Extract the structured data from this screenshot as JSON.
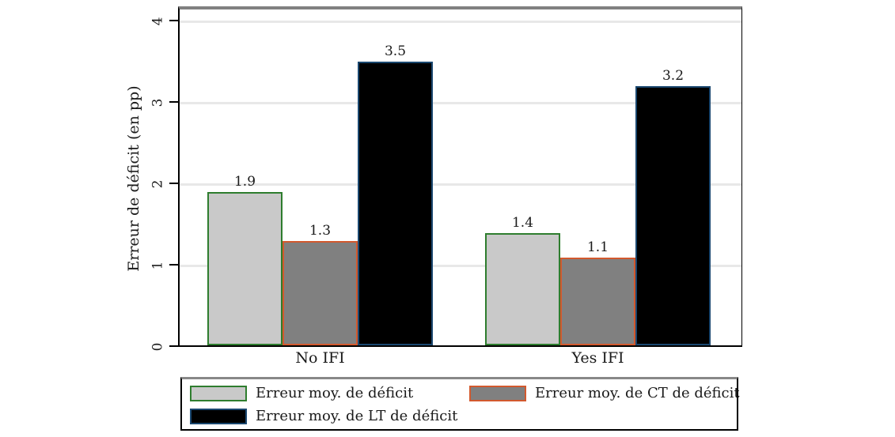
{
  "chart_data": {
    "type": "bar",
    "title": "",
    "xlabel": "",
    "ylabel": "Erreur de déficit (en pp)",
    "ylim": [
      0,
      4
    ],
    "yticks": [
      0,
      1,
      2,
      3,
      4
    ],
    "grid": "horizontal",
    "legend_position": "bottom-box",
    "categories": [
      "No IFI",
      "Yes IFI"
    ],
    "series": [
      {
        "name": "Erreur moy. de déficit",
        "fill": "#c9c9c9",
        "border": "#2e7d2e",
        "values": [
          1.9,
          1.4
        ]
      },
      {
        "name": "Erreur moy. de CT de déficit",
        "fill": "#808080",
        "border": "#d2592e",
        "values": [
          1.3,
          1.1
        ]
      },
      {
        "name": "Erreur moy. de LT de déficit",
        "fill": "#000000",
        "border": "#1a476f",
        "values": [
          3.5,
          3.2
        ]
      }
    ],
    "bar_value_labels": [
      [
        "1.9",
        "1.3",
        "3.5"
      ],
      [
        "1.4",
        "1.1",
        "3.2"
      ]
    ]
  },
  "colors": {
    "background": "#ffffff",
    "gridline": "#e8e8e8",
    "axis": "#000000",
    "plot_top_strip": "#808080",
    "text": "#1a1a1a"
  }
}
